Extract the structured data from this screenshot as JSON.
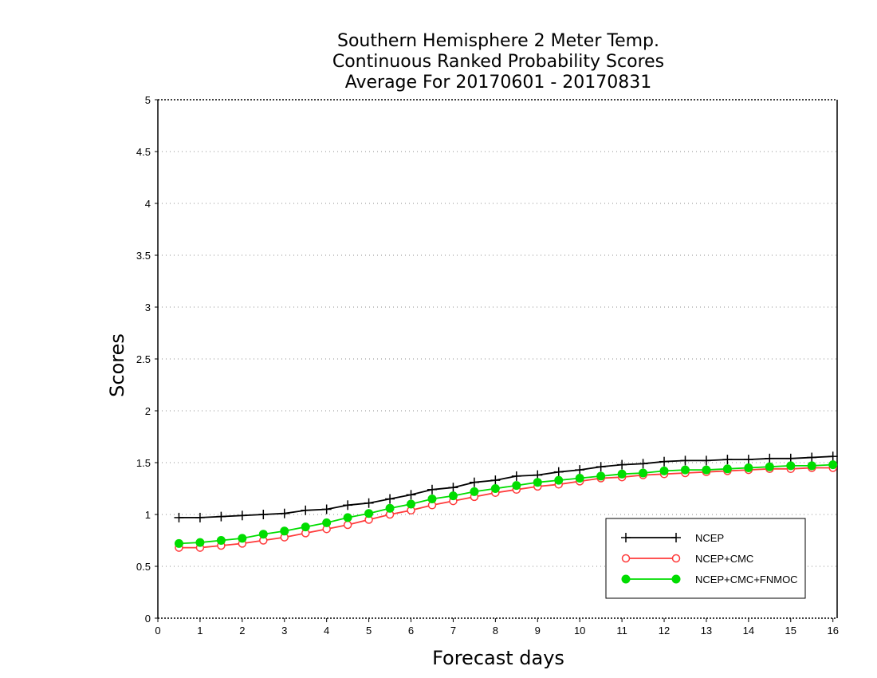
{
  "chart_data": {
    "type": "line",
    "title_lines": [
      "Southern Hemisphere 2 Meter Temp.",
      "Continuous Ranked Probability Scores",
      "Average For 20170601 - 20170831"
    ],
    "xlabel": "Forecast days",
    "ylabel": "Scores",
    "xlim": [
      0,
      16.1
    ],
    "ylim": [
      0,
      5
    ],
    "x_ticks": [
      "0",
      "1",
      "2",
      "3",
      "4",
      "5",
      "6",
      "7",
      "8",
      "9",
      "10",
      "11",
      "12",
      "13",
      "14",
      "15",
      "16"
    ],
    "y_ticks": [
      "0",
      "0.5",
      "1",
      "1.5",
      "2",
      "2.5",
      "3",
      "3.5",
      "4",
      "4.5",
      "5"
    ],
    "grid": "dotted horizontal",
    "legend_position": "bottom-right",
    "x": [
      0.5,
      1,
      1.5,
      2,
      2.5,
      3,
      3.5,
      4,
      4.5,
      5,
      5.5,
      6,
      6.5,
      7,
      7.5,
      8,
      8.5,
      9,
      9.5,
      10,
      10.5,
      11,
      11.5,
      12,
      12.5,
      13,
      13.5,
      14,
      14.5,
      15,
      15.5,
      16
    ],
    "series": [
      {
        "name": "NCEP",
        "color": "#000000",
        "marker": "plus",
        "values": [
          0.97,
          0.97,
          0.98,
          0.99,
          1.0,
          1.01,
          1.04,
          1.05,
          1.09,
          1.11,
          1.15,
          1.19,
          1.24,
          1.26,
          1.31,
          1.33,
          1.37,
          1.38,
          1.41,
          1.43,
          1.46,
          1.48,
          1.49,
          1.51,
          1.52,
          1.52,
          1.53,
          1.53,
          1.54,
          1.54,
          1.55,
          1.56
        ]
      },
      {
        "name": "NCEP+CMC",
        "color": "#ff3b3b",
        "marker": "open-circle",
        "values": [
          0.68,
          0.68,
          0.7,
          0.72,
          0.75,
          0.78,
          0.82,
          0.86,
          0.9,
          0.95,
          1.0,
          1.04,
          1.09,
          1.13,
          1.17,
          1.21,
          1.24,
          1.27,
          1.29,
          1.32,
          1.35,
          1.36,
          1.38,
          1.39,
          1.4,
          1.41,
          1.42,
          1.43,
          1.44,
          1.44,
          1.45,
          1.45
        ]
      },
      {
        "name": "NCEP+CMC+FNMOC",
        "color": "#00dd00",
        "marker": "filled-circle",
        "values": [
          0.72,
          0.73,
          0.75,
          0.77,
          0.81,
          0.84,
          0.88,
          0.92,
          0.97,
          1.01,
          1.06,
          1.1,
          1.15,
          1.18,
          1.22,
          1.25,
          1.28,
          1.31,
          1.33,
          1.35,
          1.37,
          1.39,
          1.4,
          1.42,
          1.43,
          1.43,
          1.44,
          1.45,
          1.46,
          1.47,
          1.47,
          1.48
        ]
      }
    ]
  }
}
